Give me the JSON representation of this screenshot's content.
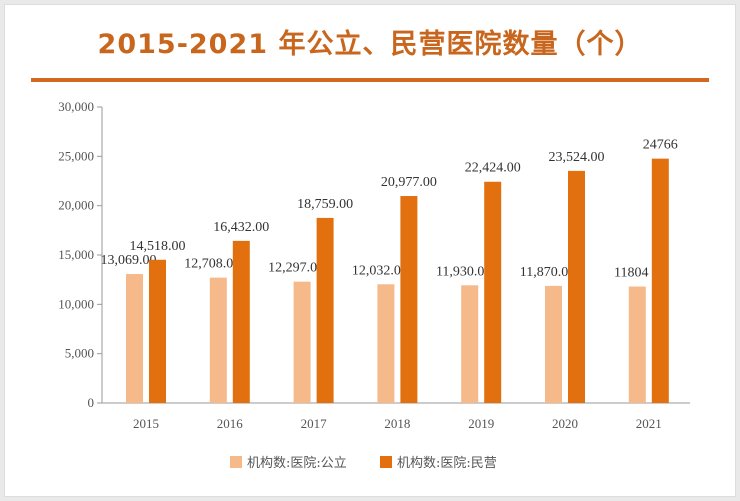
{
  "chart_data": {
    "type": "bar",
    "title": "2015-2021 年公立、民营医院数量（个）",
    "categories": [
      "2015",
      "2016",
      "2017",
      "2018",
      "2019",
      "2020",
      "2021"
    ],
    "series": [
      {
        "name": "机构数:医院:公立",
        "color": "#f5b98a",
        "values": [
          13069,
          12708,
          12297,
          12032,
          11930,
          11870,
          11804
        ],
        "labels": [
          "13,069.00",
          "12,708.00",
          "12,297.00",
          "12,032.00",
          "11,930.00",
          "11,870.00",
          "11804"
        ]
      },
      {
        "name": "机构数:医院:民营",
        "color": "#e2700f",
        "values": [
          14518,
          16432,
          18759,
          20977,
          22424,
          23524,
          24766
        ],
        "labels": [
          "14,518.00",
          "16,432.00",
          "18,759.00",
          "20,977.00",
          "22,424.00",
          "23,524.00",
          "24766"
        ]
      }
    ],
    "ylim": [
      0,
      30000
    ],
    "yticks": [
      "0",
      "5,000",
      "10,000",
      "15,000",
      "20,000",
      "25,000",
      "30,000"
    ],
    "grid": false,
    "legend": "bottom"
  }
}
